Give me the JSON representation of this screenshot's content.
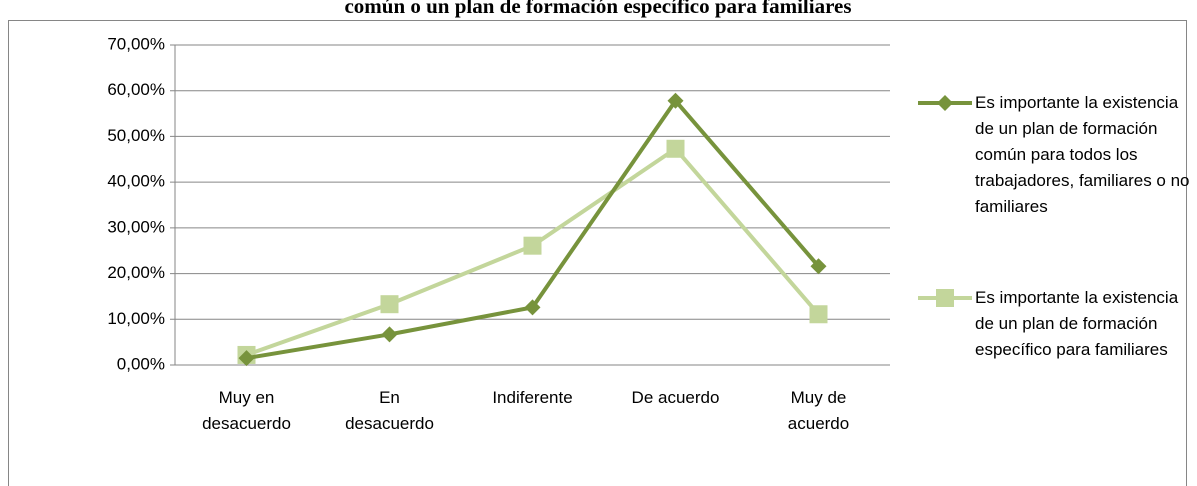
{
  "chart_data": {
    "type": "line",
    "title": "común o un plan de formación específico para familiares",
    "categories": [
      "Muy en desacuerdo",
      "En desacuerdo",
      "Indiferente",
      "De acuerdo",
      "Muy de acuerdo"
    ],
    "series": [
      {
        "name": "Es importante la existencia de un plan de formación común para todos los trabajadores, familiares o no familiares",
        "color": "#77933c",
        "marker": "diamond",
        "values": [
          1.5,
          6.7,
          12.6,
          57.8,
          21.6
        ]
      },
      {
        "name": "Es importante la existencia de un plan de formación específico para familiares",
        "color": "#c3d69b",
        "marker": "square",
        "values": [
          2.2,
          13.3,
          26.1,
          47.3,
          11.1
        ]
      }
    ],
    "ylim": [
      0,
      70
    ],
    "yticks": [
      {
        "value": 0,
        "label": "0,00%"
      },
      {
        "value": 10,
        "label": "10,00%"
      },
      {
        "value": 20,
        "label": "20,00%"
      },
      {
        "value": 30,
        "label": "30,00%"
      },
      {
        "value": 40,
        "label": "40,00%"
      },
      {
        "value": 50,
        "label": "50,00%"
      },
      {
        "value": 60,
        "label": "60,00%"
      },
      {
        "value": 70,
        "label": "70,00%"
      }
    ],
    "grid": true,
    "legend": "right"
  }
}
